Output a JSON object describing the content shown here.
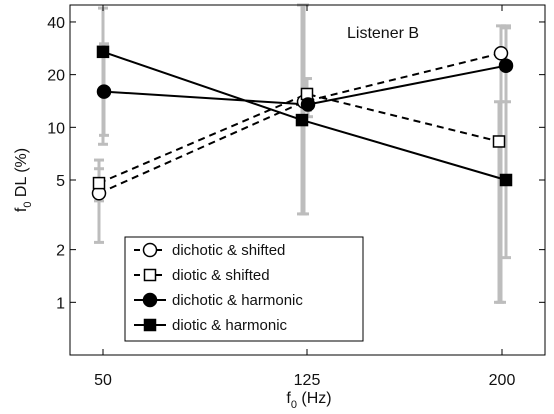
{
  "chart_data": {
    "type": "line",
    "annotation": "Listener B",
    "xlabel": {
      "main": "f",
      "sub": "0",
      "rest": " (Hz)"
    },
    "ylabel": {
      "main": "f",
      "sub": "0",
      "rest": " DL (%)"
    },
    "x_scale": "categorical",
    "y_scale": "log",
    "categories": [
      "50",
      "125",
      "200"
    ],
    "ylim": [
      0.5,
      50
    ],
    "yticks": [
      1,
      2,
      5,
      10,
      20,
      40
    ],
    "ytick_labels": [
      "1",
      "2",
      "5",
      "10",
      "20",
      "40"
    ],
    "grid": false,
    "legend_position": "bottom-left",
    "error_bar_color": "#bdbdbd",
    "series": [
      {
        "name": "dichotic & shifted",
        "line": "dashed",
        "marker": "circle-open",
        "values": [
          4.2,
          14.0,
          26.5
        ],
        "err_low": [
          2.2,
          3.2,
          1.0
        ],
        "err_high": [
          5.8,
          50,
          38
        ]
      },
      {
        "name": "diotic & shifted",
        "line": "dashed",
        "marker": "square-open",
        "values": [
          4.8,
          15.5,
          8.3
        ],
        "err_low": [
          3.8,
          12.5,
          1.0
        ],
        "err_high": [
          6.5,
          19,
          14
        ]
      },
      {
        "name": "dichotic & harmonic",
        "line": "solid",
        "marker": "circle-filled",
        "values": [
          16.0,
          13.5,
          22.5
        ],
        "err_low": [
          9.0,
          11.5,
          14.0
        ],
        "err_high": [
          30,
          16.5,
          37
        ]
      },
      {
        "name": "diotic & harmonic",
        "line": "solid",
        "marker": "square-filled",
        "values": [
          27.0,
          11.0,
          5.0
        ],
        "err_low": [
          8.0,
          3.2,
          1.8
        ],
        "err_high": [
          48,
          50,
          38
        ]
      }
    ]
  }
}
